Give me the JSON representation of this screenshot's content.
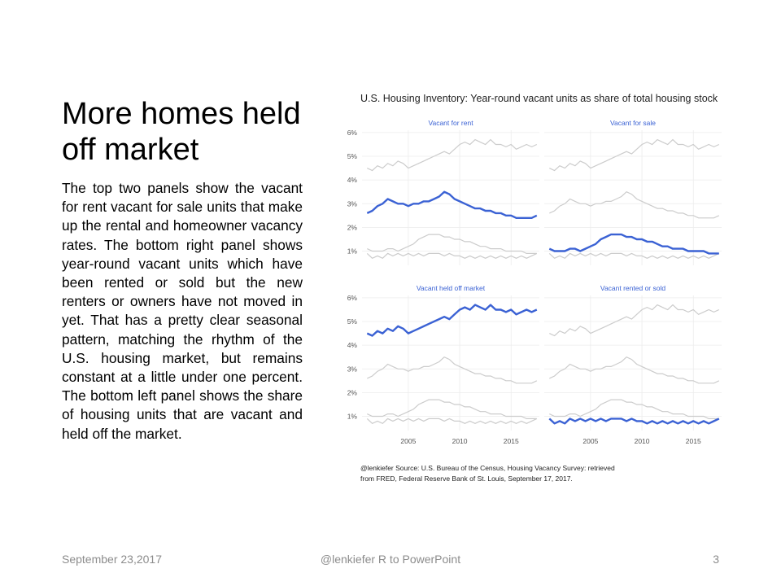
{
  "slide": {
    "title": "More homes held off market",
    "body": "The top two panels show the vacant for rent vacant for sale units that make up the rental and homeowner vacancy rates. The bottom right panel shows year-round vacant units which have been rented or sold but the new renters or owners have not moved in yet. That has a pretty clear seasonal pattern, matching the rhythm of the U.S. housing market, but remains constant at a little under one percent. The bottom left panel shows the share of housing units that are vacant and held off the market."
  },
  "footer": {
    "date": "September 23,2017",
    "center": "@lenkiefer R to PowerPoint",
    "page": "3"
  },
  "chart_data": {
    "type": "line",
    "title": "U.S. Housing Inventory: Year-round vacant units as share of total housing stock",
    "caption_line1": "@lenkiefer Source: U.S. Bureau of the Census, Housing Vacancy Survey: retrieved",
    "caption_line2": "from FRED, Federal Reserve Bank of St. Louis, September 17, 2017.",
    "xlim": [
      2000.5,
      2017.75
    ],
    "ylim": [
      0.4,
      6.1
    ],
    "y_ticks": [
      1,
      2,
      3,
      4,
      5,
      6
    ],
    "y_tick_labels": [
      "1%",
      "2%",
      "3%",
      "4%",
      "5%",
      "6%"
    ],
    "x_ticks": [
      2005,
      2010,
      2015
    ],
    "x_tick_labels": [
      "2005",
      "2010",
      "2015"
    ],
    "colors": {
      "highlight": "#3b62d4",
      "context": "#cccccc",
      "panel_title": "#3b62d4"
    },
    "panels": [
      "Vacant for rent",
      "Vacant for sale",
      "Vacant held off market",
      "Vacant rented or sold"
    ],
    "x": [
      2001.0,
      2001.5,
      2002.0,
      2002.5,
      2003.0,
      2003.5,
      2004.0,
      2004.5,
      2005.0,
      2005.5,
      2006.0,
      2006.5,
      2007.0,
      2007.5,
      2008.0,
      2008.5,
      2009.0,
      2009.5,
      2010.0,
      2010.5,
      2011.0,
      2011.5,
      2012.0,
      2012.5,
      2013.0,
      2013.5,
      2014.0,
      2014.5,
      2015.0,
      2015.5,
      2016.0,
      2016.5,
      2017.0,
      2017.5
    ],
    "series": [
      {
        "name": "Vacant for rent",
        "values": [
          2.6,
          2.7,
          2.9,
          3.0,
          3.2,
          3.1,
          3.0,
          3.0,
          2.9,
          3.0,
          3.0,
          3.1,
          3.1,
          3.2,
          3.3,
          3.5,
          3.4,
          3.2,
          3.1,
          3.0,
          2.9,
          2.8,
          2.8,
          2.7,
          2.7,
          2.6,
          2.6,
          2.5,
          2.5,
          2.4,
          2.4,
          2.4,
          2.4,
          2.5
        ]
      },
      {
        "name": "Vacant for sale",
        "values": [
          1.1,
          1.0,
          1.0,
          1.0,
          1.1,
          1.1,
          1.0,
          1.1,
          1.2,
          1.3,
          1.5,
          1.6,
          1.7,
          1.7,
          1.7,
          1.6,
          1.6,
          1.5,
          1.5,
          1.4,
          1.4,
          1.3,
          1.2,
          1.2,
          1.1,
          1.1,
          1.1,
          1.0,
          1.0,
          1.0,
          1.0,
          0.9,
          0.9,
          0.9
        ]
      },
      {
        "name": "Vacant held off market",
        "values": [
          4.5,
          4.4,
          4.6,
          4.5,
          4.7,
          4.6,
          4.8,
          4.7,
          4.5,
          4.6,
          4.7,
          4.8,
          4.9,
          5.0,
          5.1,
          5.2,
          5.1,
          5.3,
          5.5,
          5.6,
          5.5,
          5.7,
          5.6,
          5.5,
          5.7,
          5.5,
          5.5,
          5.4,
          5.5,
          5.3,
          5.4,
          5.5,
          5.4,
          5.5
        ]
      },
      {
        "name": "Vacant rented or sold",
        "values": [
          0.9,
          0.7,
          0.8,
          0.7,
          0.9,
          0.8,
          0.9,
          0.8,
          0.9,
          0.8,
          0.9,
          0.8,
          0.9,
          0.9,
          0.9,
          0.8,
          0.9,
          0.8,
          0.8,
          0.7,
          0.8,
          0.7,
          0.8,
          0.7,
          0.8,
          0.7,
          0.8,
          0.7,
          0.8,
          0.7,
          0.8,
          0.7,
          0.8,
          0.9
        ]
      }
    ]
  }
}
